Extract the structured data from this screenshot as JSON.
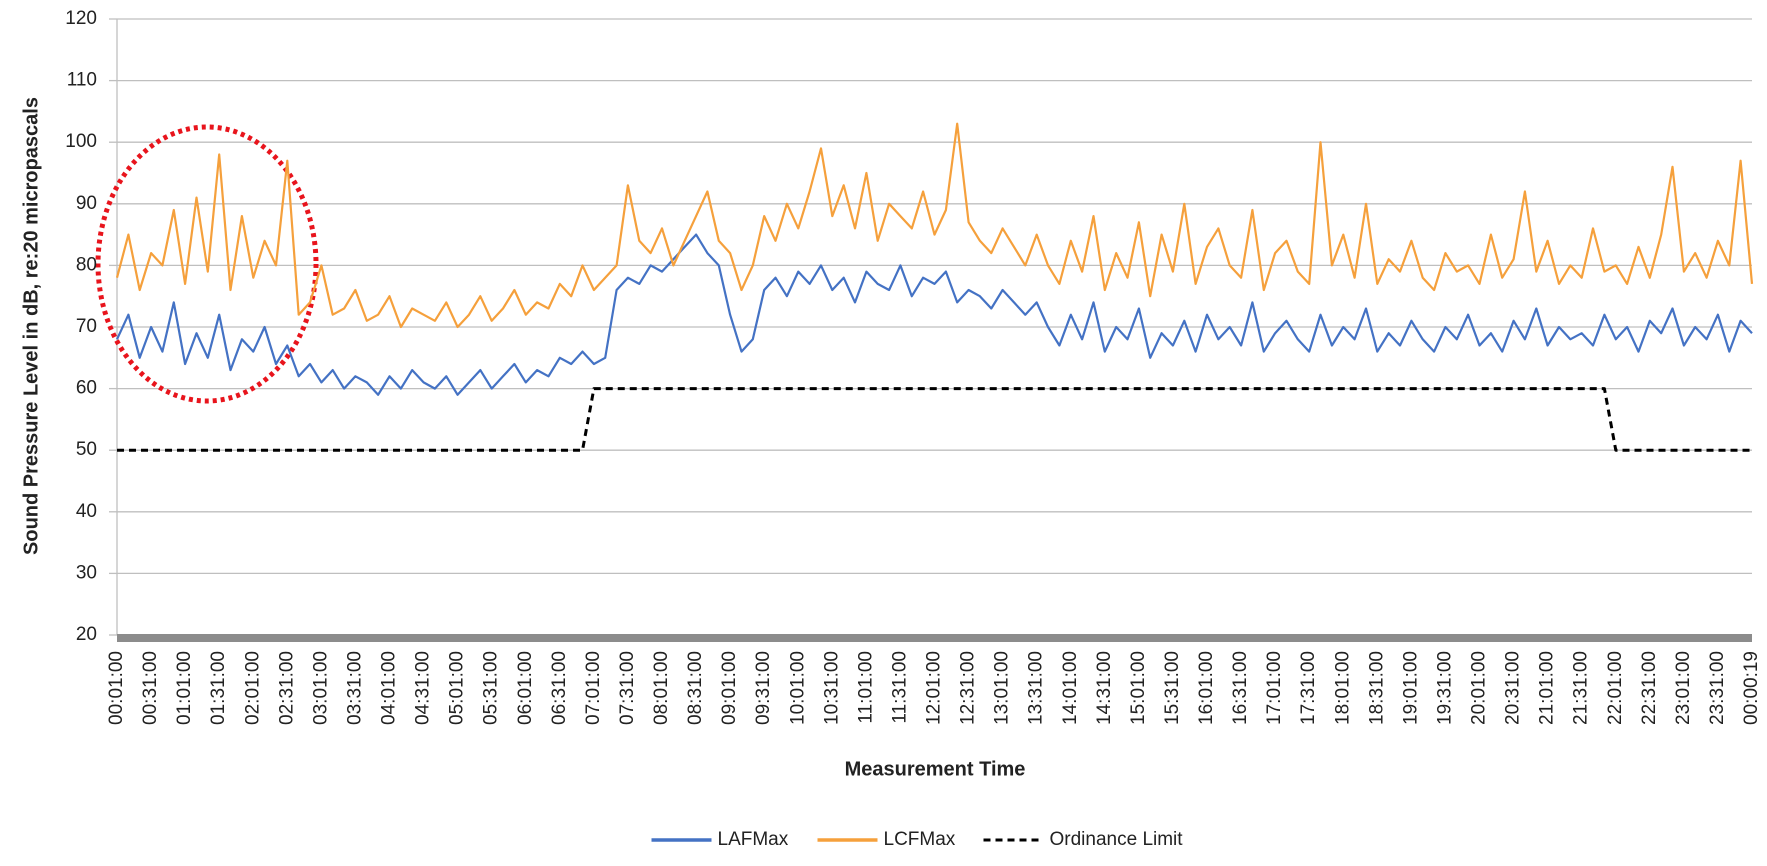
{
  "chart_data": {
    "type": "line",
    "xlabel": "Measurement Time",
    "ylabel": "Sound Pressure Level in dB, re:20 micropascals",
    "ylim": [
      20,
      120
    ],
    "yticks": [
      20,
      30,
      40,
      50,
      60,
      70,
      80,
      90,
      100,
      110,
      120
    ],
    "grid": true,
    "legend": "bottom",
    "categories": [
      "00:01:00",
      null,
      null,
      "00:31:00",
      null,
      null,
      "01:01:00",
      null,
      null,
      "01:31:00",
      null,
      null,
      "02:01:00",
      null,
      null,
      "02:31:00",
      null,
      null,
      "03:01:00",
      null,
      null,
      "03:31:00",
      null,
      null,
      "04:01:00",
      null,
      null,
      "04:31:00",
      null,
      null,
      "05:01:00",
      null,
      null,
      "05:31:00",
      null,
      null,
      "06:01:00",
      null,
      null,
      "06:31:00",
      null,
      null,
      "07:01:00",
      null,
      null,
      "07:31:00",
      null,
      null,
      "08:01:00",
      null,
      null,
      "08:31:00",
      null,
      null,
      "09:01:00",
      null,
      null,
      "09:31:00",
      null,
      null,
      "10:01:00",
      null,
      null,
      "10:31:00",
      null,
      null,
      "11:01:00",
      null,
      null,
      "11:31:00",
      null,
      null,
      "12:01:00",
      null,
      null,
      "12:31:00",
      null,
      null,
      "13:01:00",
      null,
      null,
      "13:31:00",
      null,
      null,
      "14:01:00",
      null,
      null,
      "14:31:00",
      null,
      null,
      "15:01:00",
      null,
      null,
      "15:31:00",
      null,
      null,
      "16:01:00",
      null,
      null,
      "16:31:00",
      null,
      null,
      "17:01:00",
      null,
      null,
      "17:31:00",
      null,
      null,
      "18:01:00",
      null,
      null,
      "18:31:00",
      null,
      null,
      "19:01:00",
      null,
      null,
      "19:31:00",
      null,
      null,
      "20:01:00",
      null,
      null,
      "20:31:00",
      null,
      null,
      "21:01:00",
      null,
      null,
      "21:31:00",
      null,
      null,
      "22:01:00",
      null,
      null,
      "22:31:00",
      null,
      null,
      "23:01:00",
      null,
      null,
      "23:31:00",
      null,
      null,
      "00:00:19"
    ],
    "series": [
      {
        "name": "LAFMax",
        "color": "#4472c4",
        "line_style": "solid",
        "values": [
          68,
          72,
          65,
          70,
          66,
          74,
          64,
          69,
          65,
          72,
          63,
          68,
          66,
          70,
          64,
          67,
          62,
          64,
          61,
          63,
          60,
          62,
          61,
          59,
          62,
          60,
          63,
          61,
          60,
          62,
          59,
          61,
          63,
          60,
          62,
          64,
          61,
          63,
          62,
          65,
          64,
          66,
          64,
          65,
          76,
          78,
          77,
          80,
          79,
          81,
          83,
          85,
          82,
          80,
          72,
          66,
          68,
          76,
          78,
          75,
          79,
          77,
          80,
          76,
          78,
          74,
          79,
          77,
          76,
          80,
          75,
          78,
          77,
          79,
          74,
          76,
          75,
          73,
          76,
          74,
          72,
          74,
          70,
          67,
          72,
          68,
          74,
          66,
          70,
          68,
          73,
          65,
          69,
          67,
          71,
          66,
          72,
          68,
          70,
          67,
          74,
          66,
          69,
          71,
          68,
          66,
          72,
          67,
          70,
          68,
          73,
          66,
          69,
          67,
          71,
          68,
          66,
          70,
          68,
          72,
          67,
          69,
          66,
          71,
          68,
          73,
          67,
          70,
          68,
          69,
          67,
          72,
          68,
          70,
          66,
          71,
          69,
          73,
          67,
          70,
          68,
          72,
          66,
          71,
          69
        ]
      },
      {
        "name": "LCFMax",
        "color": "#f5a03c",
        "line_style": "solid",
        "values": [
          78,
          85,
          76,
          82,
          80,
          89,
          77,
          91,
          79,
          98,
          76,
          88,
          78,
          84,
          80,
          97,
          72,
          74,
          80,
          72,
          73,
          76,
          71,
          72,
          75,
          70,
          73,
          72,
          71,
          74,
          70,
          72,
          75,
          71,
          73,
          76,
          72,
          74,
          73,
          77,
          75,
          80,
          76,
          78,
          80,
          93,
          84,
          82,
          86,
          80,
          84,
          88,
          92,
          84,
          82,
          76,
          80,
          88,
          84,
          90,
          86,
          92,
          99,
          88,
          93,
          86,
          95,
          84,
          90,
          88,
          86,
          92,
          85,
          89,
          103,
          87,
          84,
          82,
          86,
          83,
          80,
          85,
          80,
          77,
          84,
          79,
          88,
          76,
          82,
          78,
          87,
          75,
          85,
          79,
          90,
          77,
          83,
          86,
          80,
          78,
          89,
          76,
          82,
          84,
          79,
          77,
          100,
          80,
          85,
          78,
          90,
          77,
          81,
          79,
          84,
          78,
          76,
          82,
          79,
          80,
          77,
          85,
          78,
          81,
          92,
          79,
          84,
          77,
          80,
          78,
          86,
          79,
          80,
          77,
          83,
          78,
          85,
          96,
          79,
          82,
          78,
          84,
          80,
          97,
          77
        ]
      },
      {
        "name": "Ordinance Limit",
        "color": "#000000",
        "line_style": "dashed",
        "values": [
          50,
          50,
          50,
          50,
          50,
          50,
          50,
          50,
          50,
          50,
          50,
          50,
          50,
          50,
          50,
          50,
          50,
          50,
          50,
          50,
          50,
          50,
          50,
          50,
          50,
          50,
          50,
          50,
          50,
          50,
          50,
          50,
          50,
          50,
          50,
          50,
          50,
          50,
          50,
          50,
          50,
          50,
          60,
          60,
          60,
          60,
          60,
          60,
          60,
          60,
          60,
          60,
          60,
          60,
          60,
          60,
          60,
          60,
          60,
          60,
          60,
          60,
          60,
          60,
          60,
          60,
          60,
          60,
          60,
          60,
          60,
          60,
          60,
          60,
          60,
          60,
          60,
          60,
          60,
          60,
          60,
          60,
          60,
          60,
          60,
          60,
          60,
          60,
          60,
          60,
          60,
          60,
          60,
          60,
          60,
          60,
          60,
          60,
          60,
          60,
          60,
          60,
          60,
          60,
          60,
          60,
          60,
          60,
          60,
          60,
          60,
          60,
          60,
          60,
          60,
          60,
          60,
          60,
          60,
          60,
          60,
          60,
          60,
          60,
          60,
          60,
          60,
          60,
          60,
          60,
          60,
          60,
          50,
          50,
          50,
          50,
          50,
          50,
          50,
          50,
          50,
          50,
          50,
          50,
          50
        ]
      }
    ]
  }
}
